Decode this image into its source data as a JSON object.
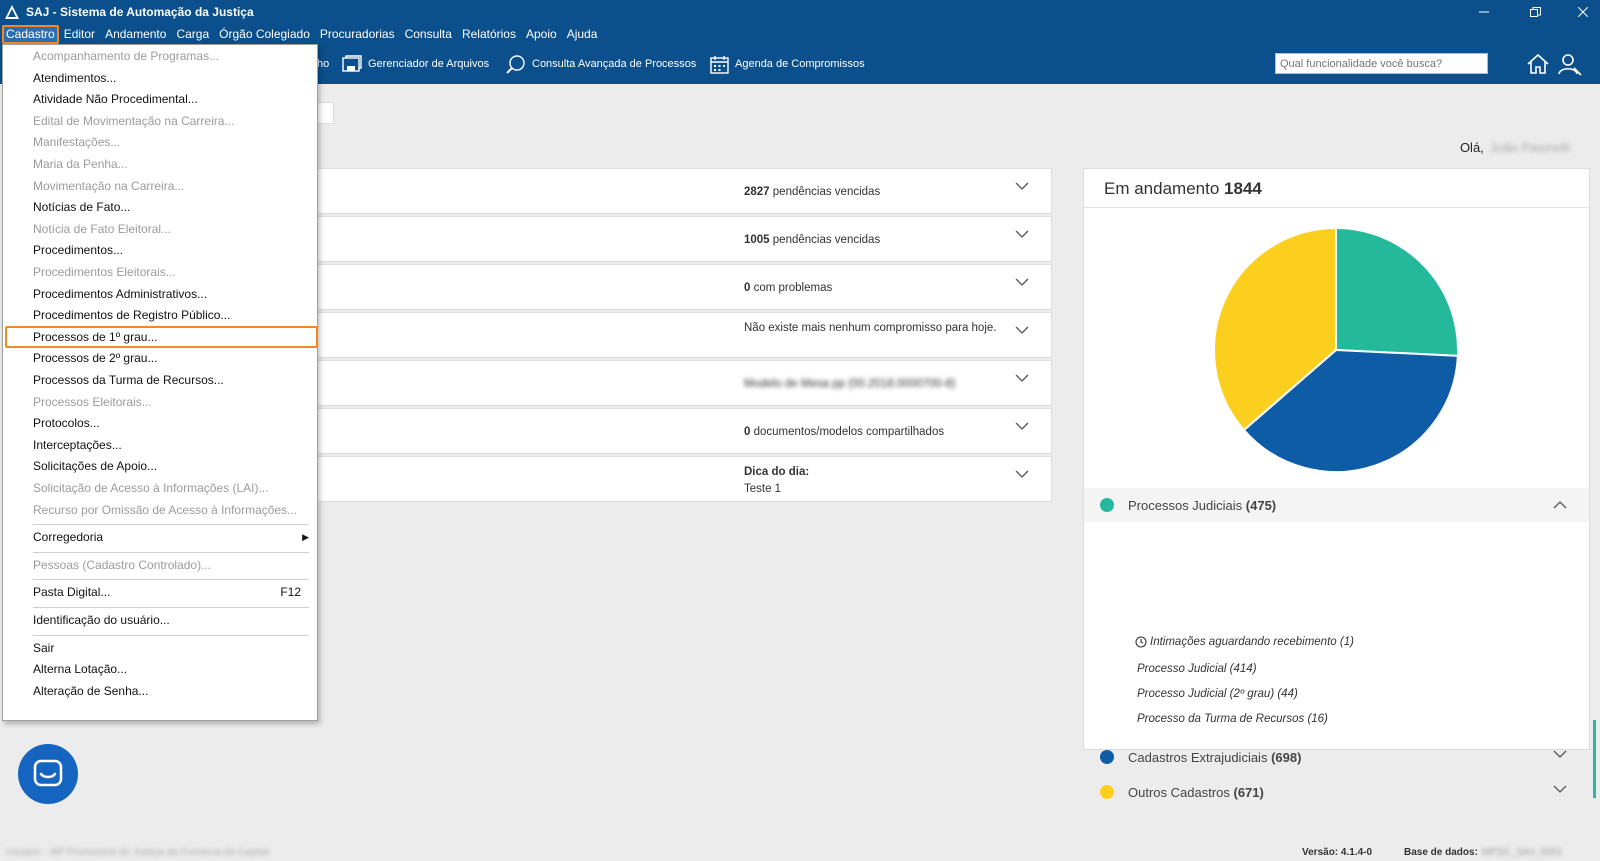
{
  "window": {
    "title": "SAJ - Sistema de Automação da Justiça"
  },
  "menubar": {
    "items": [
      "Cadastro",
      "Editor",
      "Andamento",
      "Carga",
      "Órgão Colegiado",
      "Procuradorias",
      "Consulta",
      "Relatórios",
      "Apoio",
      "Ajuda"
    ],
    "active": "Cadastro"
  },
  "toolbar": {
    "partial_label": "ho",
    "buttons": [
      {
        "label": "Gerenciador de Arquivos",
        "icon": "file-manager-icon"
      },
      {
        "label": "Consulta Avançada de Processos",
        "icon": "advanced-search-icon"
      },
      {
        "label": "Agenda de Compromissos",
        "icon": "calendar-icon"
      }
    ],
    "search_placeholder": "Qual funcionalidade você busca?"
  },
  "greeting": {
    "prefix": "Olá,",
    "user": "João Pasinelli"
  },
  "cards": [
    {
      "num": "2827",
      "text": " pendências vencidas",
      "style": "red"
    },
    {
      "num": "1005",
      "text": " pendências vencidas",
      "style": "red"
    },
    {
      "num": "0",
      "text": " com problemas",
      "style": "red"
    },
    {
      "num": "",
      "text": "Não existe mais nenhum compromisso para hoje.",
      "style": "plain"
    },
    {
      "num": "",
      "text": "Modelo de Mesa pp (00.2018.0000700-8)",
      "style": "blurred"
    },
    {
      "num": "0",
      "text": " documentos/modelos compartilhados",
      "style": "plain"
    },
    {
      "num": "Dica do dia:",
      "text": "Teste 1",
      "style": "tip"
    }
  ],
  "panel": {
    "title": "Em andamento",
    "total": "1844",
    "categories": [
      {
        "label": "Processos Judiciais",
        "count": "(475)",
        "color": "#24b99a",
        "expanded": true
      },
      {
        "label": "Cadastros Extrajudiciais",
        "count": "(698)",
        "color": "#0d5ca5",
        "expanded": false
      },
      {
        "label": "Outros Cadastros",
        "count": "(671)",
        "color": "#fccf1e",
        "expanded": false
      }
    ],
    "subitems": [
      "Intimações aguardando recebimento (1)",
      "Processo Judicial (414)",
      "Processo Judicial (2º grau) (44)",
      "Processo da Turma de Recursos (16)"
    ]
  },
  "chart_data": {
    "type": "pie",
    "title": "",
    "slices": [
      {
        "label": "Processos Judiciais",
        "value": 475,
        "color": "#24b99a"
      },
      {
        "label": "Cadastros Extrajudiciais",
        "value": 698,
        "color": "#0d5ca5"
      },
      {
        "label": "Outros Cadastros",
        "value": 671,
        "color": "#fccf1e"
      }
    ]
  },
  "dropdown": {
    "items": [
      {
        "label": "Acompanhamento de Programas...",
        "disabled": true
      },
      {
        "label": "Atendimentos...",
        "disabled": false
      },
      {
        "label": "Atividade Não Procedimental...",
        "disabled": false
      },
      {
        "label": "Edital de Movimentação na Carreira...",
        "disabled": true
      },
      {
        "label": "Manifestações...",
        "disabled": true
      },
      {
        "label": "Maria da Penha...",
        "disabled": true
      },
      {
        "label": "Movimentação na Carreira...",
        "disabled": true
      },
      {
        "label": "Notícias de Fato...",
        "disabled": false
      },
      {
        "label": "Notícia de Fato Eleitoral...",
        "disabled": true
      },
      {
        "label": "Procedimentos...",
        "disabled": false
      },
      {
        "label": "Procedimentos Eleitorais...",
        "disabled": true
      },
      {
        "label": "Procedimentos Administrativos...",
        "disabled": false
      },
      {
        "label": "Procedimentos de Registro Público...",
        "disabled": false
      },
      {
        "label": "Processos de 1º grau...",
        "disabled": false,
        "highlight": true
      },
      {
        "label": "Processos de 2º grau...",
        "disabled": false
      },
      {
        "label": "Processos da Turma de Recursos...",
        "disabled": false
      },
      {
        "label": "Processos Eleitorais...",
        "disabled": true
      },
      {
        "label": "Protocolos...",
        "disabled": false
      },
      {
        "label": "Interceptações...",
        "disabled": false
      },
      {
        "label": "Solicitações de Apoio...",
        "disabled": false
      },
      {
        "label": "Solicitação de Acesso à Informações (LAI)...",
        "disabled": true
      },
      {
        "label": "Recurso por Omissão de Acesso à Informações...",
        "disabled": true
      },
      {
        "label": "Corregedoria",
        "disabled": false,
        "submenu": true,
        "sep_before": true
      },
      {
        "label": "Pessoas (Cadastro Controlado)...",
        "disabled": true,
        "sep_before": true
      },
      {
        "label": "Pasta Digital...",
        "disabled": false,
        "shortcut": "F12",
        "sep_before": true
      },
      {
        "label": "Identificação do usuário...",
        "disabled": false,
        "sep_before": true
      },
      {
        "label": "Sair",
        "disabled": false,
        "sep_before": true
      },
      {
        "label": "Alterna Lotação...",
        "disabled": false
      },
      {
        "label": "Alteração de Senha...",
        "disabled": false
      }
    ]
  },
  "status": {
    "left": "Usuário - 38ª Promotoria de Justiça da Comarca da Capital",
    "version_label": "Versão:",
    "version": "4.1.4-0",
    "db_label": "Base de dados:",
    "db": "MPSC_SAJ_0001"
  }
}
